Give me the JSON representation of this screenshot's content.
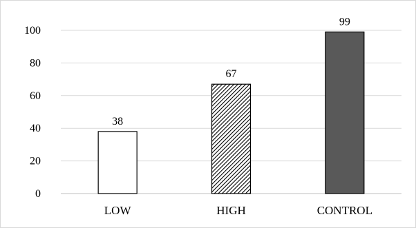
{
  "chart_data": {
    "type": "bar",
    "categories": [
      "LOW",
      "HIGH",
      "CONTROL"
    ],
    "values": [
      38,
      67,
      99
    ],
    "data_labels": [
      "38",
      "67",
      "99"
    ],
    "title": "",
    "xlabel": "",
    "ylabel": "",
    "ylim": [
      0,
      100
    ],
    "yticks": [
      0,
      20,
      40,
      60,
      80,
      100
    ],
    "ytick_labels": [
      "0",
      "20",
      "40",
      "60",
      "80",
      "100"
    ],
    "grid": "horizontal",
    "legend": "none",
    "bar_fills": [
      "white",
      "diagonal-hatch",
      "solid"
    ],
    "colors": {
      "bar_outline": "#000000",
      "bar_control": "#595959",
      "hatch": "#000000",
      "gridline": "#d9d9d9",
      "axis": "#bfbfbf"
    }
  }
}
